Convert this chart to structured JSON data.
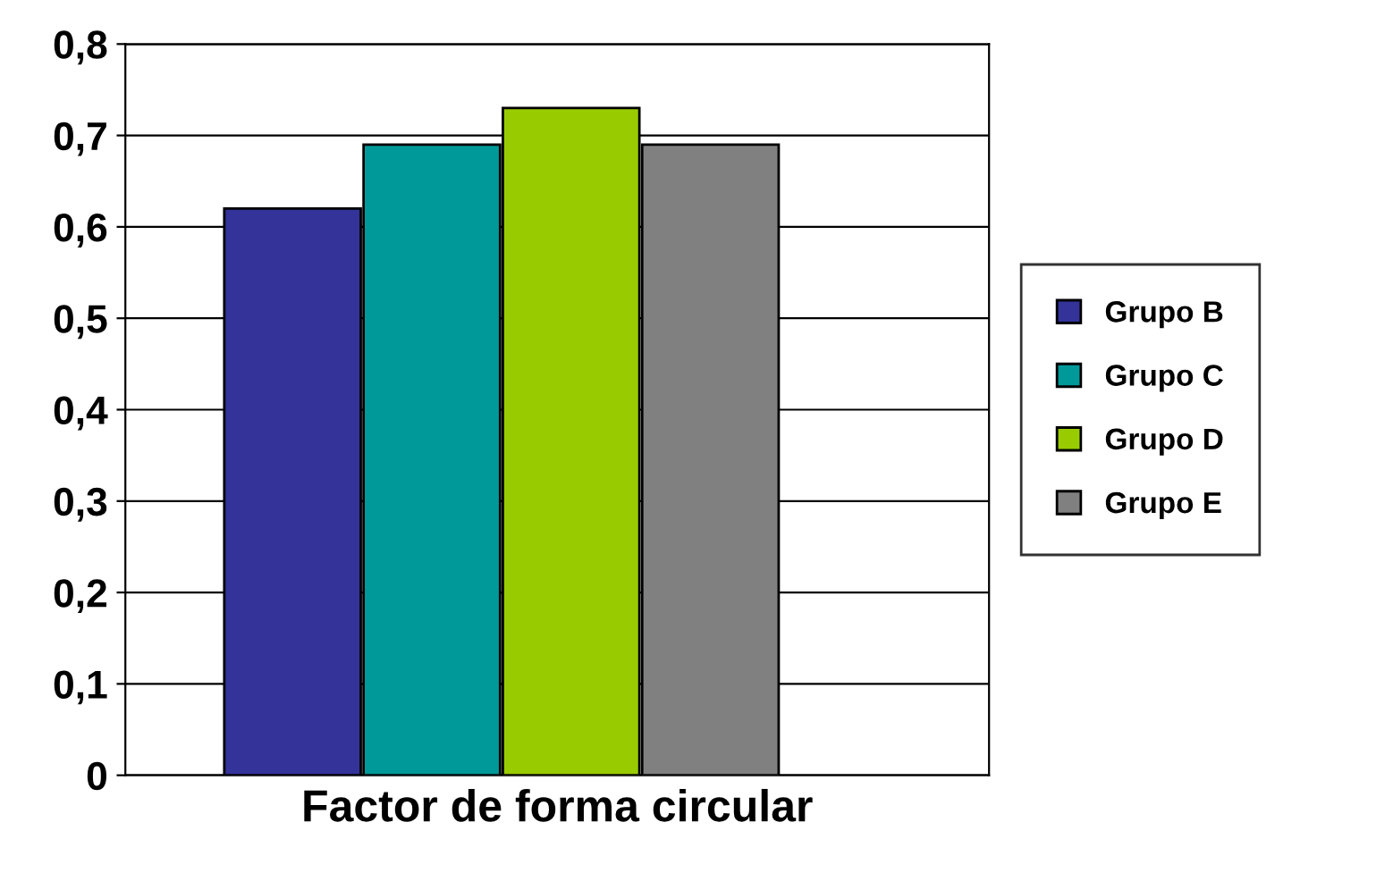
{
  "chart_data": {
    "type": "bar",
    "xlabel": "Factor de forma circular",
    "categories": [
      null,
      null,
      null,
      null
    ],
    "stacked": true,
    "series": [
      {
        "name": "Grupo B",
        "color": "#333399",
        "values": [
          0.62,
          null,
          null,
          null
        ]
      },
      {
        "name": "Grupo C",
        "color": "#009999",
        "values": [
          null,
          0.69,
          null,
          null
        ]
      },
      {
        "name": "Grupo D",
        "color": "#99cc00",
        "values": [
          null,
          null,
          0.73,
          null
        ]
      },
      {
        "name": "Grupo E",
        "color": "#808080",
        "values": [
          null,
          null,
          null,
          0.69
        ]
      }
    ],
    "ylim": [
      0,
      0.8
    ],
    "yticks": [
      {
        "value": 0,
        "label": "0"
      },
      {
        "value": 0.1,
        "label": "0,1"
      },
      {
        "value": 0.2,
        "label": "0,2"
      },
      {
        "value": 0.3,
        "label": "0,3"
      },
      {
        "value": 0.4,
        "label": "0,4"
      },
      {
        "value": 0.5,
        "label": "0,5"
      },
      {
        "value": 0.6,
        "label": "0,6"
      },
      {
        "value": 0.7,
        "label": "0,7"
      },
      {
        "value": 0.8,
        "label": "0,8"
      }
    ],
    "grid": "y",
    "legend": "right"
  }
}
